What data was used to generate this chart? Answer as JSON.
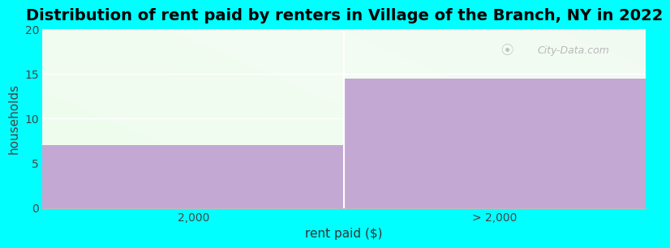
{
  "title": "Distribution of rent paid by renters in Village of the Branch, NY in 2022",
  "categories": [
    "2,000",
    "> 2,000"
  ],
  "values": [
    7,
    14.5
  ],
  "bar_color": "#c4a8d4",
  "xlabel": "rent paid ($)",
  "ylabel": "households",
  "ylim": [
    0,
    20
  ],
  "yticks": [
    0,
    5,
    10,
    15,
    20
  ],
  "background_color": "#00ffff",
  "watermark_text": "City-Data.com",
  "title_fontsize": 14,
  "label_fontsize": 11,
  "grid_color": "#dddddd"
}
